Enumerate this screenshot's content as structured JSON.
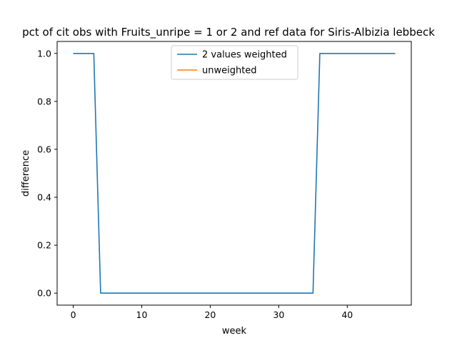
{
  "chart_data": {
    "type": "line",
    "title": "pct of cit obs with Fruits_unripe = 1 or 2 and ref data for Siris-Albizia lebbeck",
    "xlabel": "week",
    "ylabel": "difference",
    "xlim": [
      -2.35,
      49.35
    ],
    "ylim": [
      -0.05,
      1.05
    ],
    "xticks": [
      0,
      10,
      20,
      30,
      40
    ],
    "yticks": [
      0.0,
      0.2,
      0.4,
      0.6,
      0.8,
      1.0
    ],
    "xtick_labels": [
      "0",
      "10",
      "20",
      "30",
      "40"
    ],
    "ytick_labels": [
      "0.0",
      "0.2",
      "0.4",
      "0.6",
      "0.8",
      "1.0"
    ],
    "grid": false,
    "legend_position": "top-center",
    "series": [
      {
        "name": "2 values weighted",
        "color": "#1f77b4",
        "x": [
          0,
          1,
          2,
          3,
          4,
          5,
          6,
          7,
          8,
          9,
          10,
          11,
          12,
          13,
          14,
          15,
          16,
          17,
          18,
          19,
          20,
          21,
          22,
          23,
          24,
          25,
          26,
          27,
          28,
          29,
          30,
          31,
          32,
          33,
          34,
          35,
          36,
          37,
          38,
          39,
          40,
          41,
          42,
          43,
          44,
          45,
          46,
          47
        ],
        "values": [
          1,
          1,
          1,
          1,
          0,
          0,
          0,
          0,
          0,
          0,
          0,
          0,
          0,
          0,
          0,
          0,
          0,
          0,
          0,
          0,
          0,
          0,
          0,
          0,
          0,
          0,
          0,
          0,
          0,
          0,
          0,
          0,
          0,
          0,
          0,
          0,
          1,
          1,
          1,
          1,
          1,
          1,
          1,
          1,
          1,
          1,
          1,
          1
        ]
      },
      {
        "name": "unweighted",
        "color": "#ff7f0e",
        "x": [],
        "values": []
      }
    ]
  }
}
